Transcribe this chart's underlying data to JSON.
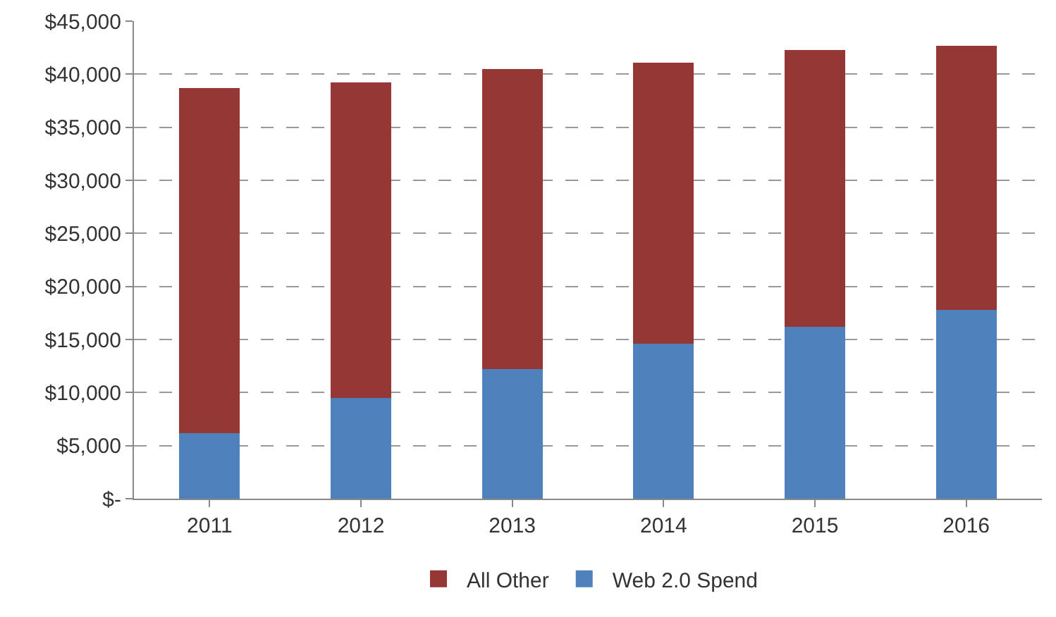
{
  "chart_data": {
    "type": "bar",
    "stacked": true,
    "categories": [
      "2011",
      "2012",
      "2013",
      "2014",
      "2015",
      "2016"
    ],
    "series": [
      {
        "name": "Web 2.0 Spend",
        "color": "#4f81bd",
        "values": [
          6200,
          9500,
          12200,
          14600,
          16200,
          17800
        ]
      },
      {
        "name": "All Other",
        "color": "#953735",
        "values": [
          32500,
          29700,
          28300,
          26500,
          26100,
          24900
        ]
      }
    ],
    "ylim": [
      0,
      45000
    ],
    "yticks": [
      {
        "value": 0,
        "label": "$-"
      },
      {
        "value": 5000,
        "label": "$5,000"
      },
      {
        "value": 10000,
        "label": "$10,000"
      },
      {
        "value": 15000,
        "label": "$15,000"
      },
      {
        "value": 20000,
        "label": "$20,000"
      },
      {
        "value": 25000,
        "label": "$25,000"
      },
      {
        "value": 30000,
        "label": "$30,000"
      },
      {
        "value": 35000,
        "label": "$35,000"
      },
      {
        "value": 40000,
        "label": "$40,000"
      },
      {
        "value": 45000,
        "label": "$45,000"
      }
    ],
    "grid": "y",
    "line_style": "dashed",
    "legend": "bottom"
  }
}
